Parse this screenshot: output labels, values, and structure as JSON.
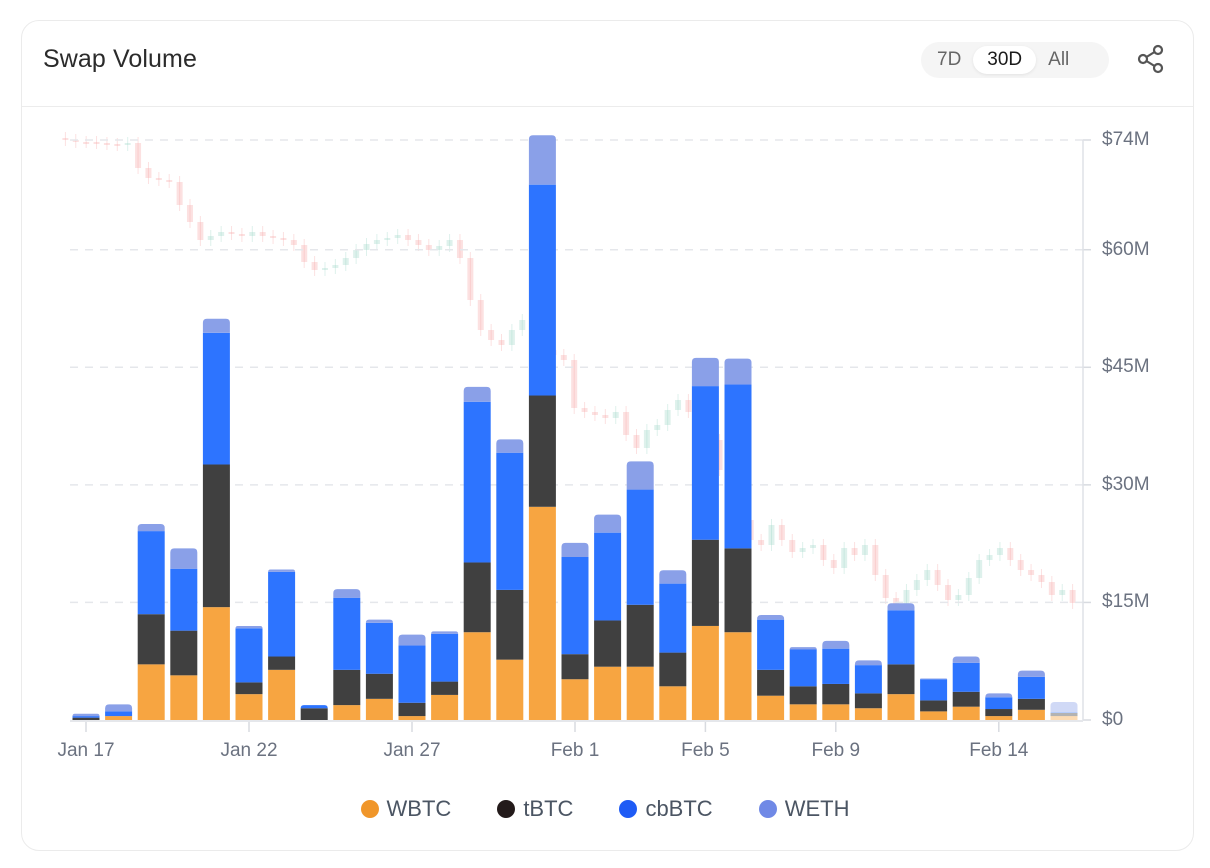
{
  "header": {
    "title": "Swap Volume",
    "ranges": [
      {
        "label": "7D",
        "active": false
      },
      {
        "label": "30D",
        "active": true
      },
      {
        "label": "All",
        "active": false
      }
    ],
    "share_icon": "share-icon"
  },
  "colors": {
    "WBTC": "#f7a541",
    "tBTC": "#404040",
    "cbBTC": "#2d74ff",
    "WETH": "#8aa0e8",
    "legend_WBTC": "#f0962a",
    "legend_tBTC": "#231a1a",
    "legend_cbBTC": "#1e5bf5",
    "legend_WETH": "#7089e6"
  },
  "legend": [
    {
      "label": "WBTC",
      "key": "WBTC"
    },
    {
      "label": "tBTC",
      "key": "tBTC"
    },
    {
      "label": "cbBTC",
      "key": "cbBTC"
    },
    {
      "label": "WETH",
      "key": "WETH"
    }
  ],
  "chart_data": {
    "type": "bar",
    "stacked": true,
    "title": "Swap Volume",
    "xlabel": "",
    "ylabel": "",
    "ylim": [
      0,
      74
    ],
    "y_unit": "$M",
    "y_ticks": [
      "$0",
      "$15M",
      "$30M",
      "$45M",
      "$60M",
      "$74M"
    ],
    "y_tick_values": [
      0,
      15,
      30,
      45,
      60,
      74
    ],
    "x_ticks": [
      {
        "label": "Jan 17",
        "index": 0
      },
      {
        "label": "Jan 22",
        "index": 5
      },
      {
        "label": "Jan 27",
        "index": 10
      },
      {
        "label": "Feb 1",
        "index": 15
      },
      {
        "label": "Feb 5",
        "index": 19
      },
      {
        "label": "Feb 9",
        "index": 23
      },
      {
        "label": "Feb 14",
        "index": 28
      }
    ],
    "grid": true,
    "legend_position": "bottom",
    "background_overlay": "faint BTC price candlestick chart",
    "categories": [
      "Jan 17",
      "Jan 18",
      "Jan 19",
      "Jan 20",
      "Jan 21",
      "Jan 22",
      "Jan 23",
      "Jan 24",
      "Jan 25",
      "Jan 26",
      "Jan 27",
      "Jan 28",
      "Jan 29",
      "Jan 30",
      "Jan 31",
      "Feb 1",
      "Feb 2",
      "Feb 3",
      "Feb 4",
      "Feb 5",
      "Feb 6",
      "Feb 7",
      "Feb 8",
      "Feb 9",
      "Feb 10",
      "Feb 11",
      "Feb 12",
      "Feb 13",
      "Feb 14",
      "Feb 15",
      "Feb 16"
    ],
    "series": [
      {
        "name": "WBTC",
        "values": [
          0.0,
          0.5,
          7.1,
          5.7,
          14.4,
          3.3,
          6.4,
          0.0,
          1.9,
          2.7,
          0.5,
          3.2,
          11.2,
          7.7,
          27.2,
          5.2,
          6.8,
          6.8,
          4.3,
          12.0,
          11.2,
          3.1,
          2.0,
          2.0,
          1.5,
          3.3,
          1.1,
          1.7,
          0.5,
          1.3,
          0.5
        ]
      },
      {
        "name": "tBTC",
        "values": [
          0.3,
          0.0,
          6.4,
          5.7,
          18.2,
          1.5,
          1.7,
          1.5,
          4.5,
          3.2,
          1.7,
          1.7,
          8.9,
          8.9,
          14.2,
          3.2,
          5.9,
          7.9,
          4.3,
          11.0,
          10.7,
          3.3,
          2.3,
          2.6,
          1.9,
          3.8,
          1.4,
          1.9,
          0.9,
          1.4,
          0.4
        ]
      },
      {
        "name": "cbBTC",
        "values": [
          0.2,
          0.6,
          10.6,
          7.9,
          16.8,
          6.9,
          10.8,
          0.4,
          9.2,
          6.5,
          7.3,
          6.1,
          20.5,
          17.5,
          26.9,
          12.4,
          11.2,
          14.7,
          8.8,
          19.6,
          20.9,
          6.4,
          4.7,
          4.5,
          3.6,
          6.9,
          2.7,
          3.7,
          1.5,
          2.8,
          0.1
        ]
      },
      {
        "name": "WETH",
        "values": [
          0.3,
          0.9,
          0.9,
          2.6,
          1.8,
          0.3,
          0.3,
          0.0,
          1.1,
          0.4,
          1.4,
          0.3,
          1.9,
          1.7,
          6.3,
          1.8,
          2.3,
          3.6,
          1.7,
          3.6,
          3.3,
          0.6,
          0.3,
          1.0,
          0.6,
          0.9,
          0.1,
          0.8,
          0.5,
          0.8,
          1.3
        ]
      }
    ],
    "partial_last_bar": true
  }
}
